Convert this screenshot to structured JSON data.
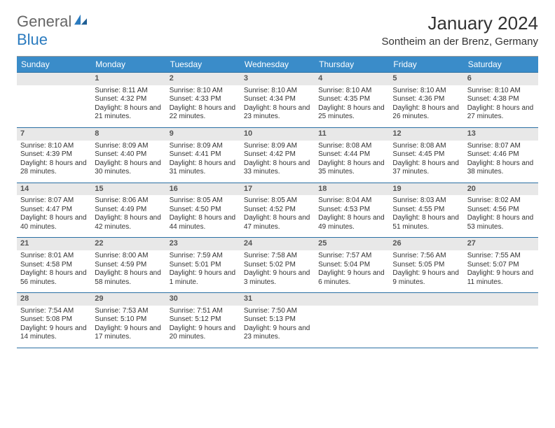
{
  "brand": {
    "part1": "General",
    "part2": "Blue",
    "accent": "#2b7bbf",
    "text_color": "#666"
  },
  "title": "January 2024",
  "location": "Sontheim an der Brenz, Germany",
  "header_bg": "#3a8cc9",
  "header_text": "#ffffff",
  "daynum_bg": "#e8e8e8",
  "border_color": "#2a6fa3",
  "weekdays": [
    "Sunday",
    "Monday",
    "Tuesday",
    "Wednesday",
    "Thursday",
    "Friday",
    "Saturday"
  ],
  "first_weekday_index": 1,
  "days": [
    {
      "n": 1,
      "sunrise": "8:11 AM",
      "sunset": "4:32 PM",
      "daylight": "8 hours and 21 minutes."
    },
    {
      "n": 2,
      "sunrise": "8:10 AM",
      "sunset": "4:33 PM",
      "daylight": "8 hours and 22 minutes."
    },
    {
      "n": 3,
      "sunrise": "8:10 AM",
      "sunset": "4:34 PM",
      "daylight": "8 hours and 23 minutes."
    },
    {
      "n": 4,
      "sunrise": "8:10 AM",
      "sunset": "4:35 PM",
      "daylight": "8 hours and 25 minutes."
    },
    {
      "n": 5,
      "sunrise": "8:10 AM",
      "sunset": "4:36 PM",
      "daylight": "8 hours and 26 minutes."
    },
    {
      "n": 6,
      "sunrise": "8:10 AM",
      "sunset": "4:38 PM",
      "daylight": "8 hours and 27 minutes."
    },
    {
      "n": 7,
      "sunrise": "8:10 AM",
      "sunset": "4:39 PM",
      "daylight": "8 hours and 28 minutes."
    },
    {
      "n": 8,
      "sunrise": "8:09 AM",
      "sunset": "4:40 PM",
      "daylight": "8 hours and 30 minutes."
    },
    {
      "n": 9,
      "sunrise": "8:09 AM",
      "sunset": "4:41 PM",
      "daylight": "8 hours and 31 minutes."
    },
    {
      "n": 10,
      "sunrise": "8:09 AM",
      "sunset": "4:42 PM",
      "daylight": "8 hours and 33 minutes."
    },
    {
      "n": 11,
      "sunrise": "8:08 AM",
      "sunset": "4:44 PM",
      "daylight": "8 hours and 35 minutes."
    },
    {
      "n": 12,
      "sunrise": "8:08 AM",
      "sunset": "4:45 PM",
      "daylight": "8 hours and 37 minutes."
    },
    {
      "n": 13,
      "sunrise": "8:07 AM",
      "sunset": "4:46 PM",
      "daylight": "8 hours and 38 minutes."
    },
    {
      "n": 14,
      "sunrise": "8:07 AM",
      "sunset": "4:47 PM",
      "daylight": "8 hours and 40 minutes."
    },
    {
      "n": 15,
      "sunrise": "8:06 AM",
      "sunset": "4:49 PM",
      "daylight": "8 hours and 42 minutes."
    },
    {
      "n": 16,
      "sunrise": "8:05 AM",
      "sunset": "4:50 PM",
      "daylight": "8 hours and 44 minutes."
    },
    {
      "n": 17,
      "sunrise": "8:05 AM",
      "sunset": "4:52 PM",
      "daylight": "8 hours and 47 minutes."
    },
    {
      "n": 18,
      "sunrise": "8:04 AM",
      "sunset": "4:53 PM",
      "daylight": "8 hours and 49 minutes."
    },
    {
      "n": 19,
      "sunrise": "8:03 AM",
      "sunset": "4:55 PM",
      "daylight": "8 hours and 51 minutes."
    },
    {
      "n": 20,
      "sunrise": "8:02 AM",
      "sunset": "4:56 PM",
      "daylight": "8 hours and 53 minutes."
    },
    {
      "n": 21,
      "sunrise": "8:01 AM",
      "sunset": "4:58 PM",
      "daylight": "8 hours and 56 minutes."
    },
    {
      "n": 22,
      "sunrise": "8:00 AM",
      "sunset": "4:59 PM",
      "daylight": "8 hours and 58 minutes."
    },
    {
      "n": 23,
      "sunrise": "7:59 AM",
      "sunset": "5:01 PM",
      "daylight": "9 hours and 1 minute."
    },
    {
      "n": 24,
      "sunrise": "7:58 AM",
      "sunset": "5:02 PM",
      "daylight": "9 hours and 3 minutes."
    },
    {
      "n": 25,
      "sunrise": "7:57 AM",
      "sunset": "5:04 PM",
      "daylight": "9 hours and 6 minutes."
    },
    {
      "n": 26,
      "sunrise": "7:56 AM",
      "sunset": "5:05 PM",
      "daylight": "9 hours and 9 minutes."
    },
    {
      "n": 27,
      "sunrise": "7:55 AM",
      "sunset": "5:07 PM",
      "daylight": "9 hours and 11 minutes."
    },
    {
      "n": 28,
      "sunrise": "7:54 AM",
      "sunset": "5:08 PM",
      "daylight": "9 hours and 14 minutes."
    },
    {
      "n": 29,
      "sunrise": "7:53 AM",
      "sunset": "5:10 PM",
      "daylight": "9 hours and 17 minutes."
    },
    {
      "n": 30,
      "sunrise": "7:51 AM",
      "sunset": "5:12 PM",
      "daylight": "9 hours and 20 minutes."
    },
    {
      "n": 31,
      "sunrise": "7:50 AM",
      "sunset": "5:13 PM",
      "daylight": "9 hours and 23 minutes."
    }
  ],
  "labels": {
    "sunrise": "Sunrise:",
    "sunset": "Sunset:",
    "daylight": "Daylight:"
  }
}
